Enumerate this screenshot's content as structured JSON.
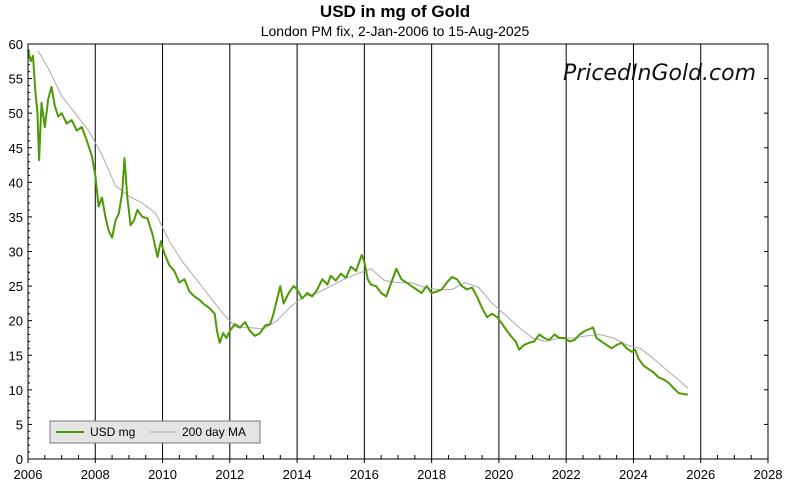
{
  "chart_data": {
    "type": "line",
    "title": "USD in mg of Gold",
    "subtitle": "London PM fix, 2-Jan-2006 to 15-Aug-2025",
    "watermark": "PricedInGold.com",
    "xlabel": "",
    "ylabel": "",
    "xlim": [
      2006,
      2028
    ],
    "ylim": [
      0,
      60
    ],
    "x_ticks": [
      "2006",
      "2008",
      "2010",
      "2012",
      "2014",
      "2016",
      "2018",
      "2020",
      "2022",
      "2024",
      "2026",
      "2028"
    ],
    "y_ticks": [
      "0",
      "5",
      "10",
      "15",
      "20",
      "25",
      "30",
      "35",
      "40",
      "45",
      "50",
      "55",
      "60"
    ],
    "grid": "vertical lines at each 2 years",
    "legend_position": "bottom-left",
    "series": [
      {
        "name": "USD mg",
        "color": "#4e9a06",
        "points": [
          [
            2006.0,
            59.2
          ],
          [
            2006.08,
            57.5
          ],
          [
            2006.15,
            58.3
          ],
          [
            2006.22,
            53.0
          ],
          [
            2006.28,
            50.2
          ],
          [
            2006.33,
            43.2
          ],
          [
            2006.4,
            51.5
          ],
          [
            2006.5,
            48.0
          ],
          [
            2006.6,
            52.0
          ],
          [
            2006.7,
            53.8
          ],
          [
            2006.8,
            51.0
          ],
          [
            2006.9,
            49.5
          ],
          [
            2007.0,
            50.0
          ],
          [
            2007.15,
            48.5
          ],
          [
            2007.3,
            49.0
          ],
          [
            2007.45,
            47.5
          ],
          [
            2007.6,
            48.0
          ],
          [
            2007.75,
            46.0
          ],
          [
            2007.9,
            43.8
          ],
          [
            2008.0,
            41.0
          ],
          [
            2008.1,
            36.5
          ],
          [
            2008.2,
            37.8
          ],
          [
            2008.3,
            35.0
          ],
          [
            2008.4,
            33.0
          ],
          [
            2008.5,
            32.0
          ],
          [
            2008.6,
            34.5
          ],
          [
            2008.7,
            35.5
          ],
          [
            2008.8,
            38.5
          ],
          [
            2008.87,
            43.5
          ],
          [
            2008.95,
            38.0
          ],
          [
            2009.05,
            33.8
          ],
          [
            2009.15,
            34.5
          ],
          [
            2009.25,
            36.0
          ],
          [
            2009.4,
            35.0
          ],
          [
            2009.55,
            34.8
          ],
          [
            2009.7,
            32.5
          ],
          [
            2009.85,
            29.2
          ],
          [
            2009.95,
            31.5
          ],
          [
            2010.05,
            29.8
          ],
          [
            2010.2,
            28.0
          ],
          [
            2010.35,
            27.2
          ],
          [
            2010.5,
            25.5
          ],
          [
            2010.65,
            26.0
          ],
          [
            2010.8,
            24.2
          ],
          [
            2010.95,
            23.5
          ],
          [
            2011.1,
            23.0
          ],
          [
            2011.25,
            22.3
          ],
          [
            2011.4,
            21.8
          ],
          [
            2011.55,
            21.0
          ],
          [
            2011.62,
            18.5
          ],
          [
            2011.7,
            16.8
          ],
          [
            2011.8,
            18.2
          ],
          [
            2011.9,
            17.5
          ],
          [
            2012.0,
            18.5
          ],
          [
            2012.15,
            19.5
          ],
          [
            2012.3,
            19.0
          ],
          [
            2012.45,
            19.8
          ],
          [
            2012.6,
            18.5
          ],
          [
            2012.75,
            17.8
          ],
          [
            2012.9,
            18.2
          ],
          [
            2013.05,
            19.3
          ],
          [
            2013.2,
            19.5
          ],
          [
            2013.3,
            21.0
          ],
          [
            2013.4,
            23.0
          ],
          [
            2013.5,
            25.0
          ],
          [
            2013.6,
            22.5
          ],
          [
            2013.75,
            24.0
          ],
          [
            2013.9,
            25.0
          ],
          [
            2014.0,
            24.5
          ],
          [
            2014.15,
            23.2
          ],
          [
            2014.3,
            24.0
          ],
          [
            2014.45,
            23.5
          ],
          [
            2014.6,
            24.5
          ],
          [
            2014.75,
            26.0
          ],
          [
            2014.9,
            25.2
          ],
          [
            2015.0,
            26.5
          ],
          [
            2015.15,
            25.8
          ],
          [
            2015.3,
            26.8
          ],
          [
            2015.45,
            26.2
          ],
          [
            2015.6,
            27.8
          ],
          [
            2015.75,
            27.2
          ],
          [
            2015.85,
            28.5
          ],
          [
            2015.92,
            29.5
          ],
          [
            2016.0,
            28.5
          ],
          [
            2016.1,
            26.0
          ],
          [
            2016.2,
            25.2
          ],
          [
            2016.35,
            25.0
          ],
          [
            2016.5,
            24.0
          ],
          [
            2016.65,
            23.5
          ],
          [
            2016.8,
            25.5
          ],
          [
            2016.95,
            27.5
          ],
          [
            2017.1,
            26.0
          ],
          [
            2017.25,
            25.5
          ],
          [
            2017.4,
            25.0
          ],
          [
            2017.55,
            24.5
          ],
          [
            2017.7,
            24.0
          ],
          [
            2017.85,
            25.0
          ],
          [
            2018.0,
            24.0
          ],
          [
            2018.15,
            24.2
          ],
          [
            2018.3,
            24.5
          ],
          [
            2018.45,
            25.5
          ],
          [
            2018.6,
            26.3
          ],
          [
            2018.75,
            26.0
          ],
          [
            2018.9,
            25.0
          ],
          [
            2019.05,
            24.5
          ],
          [
            2019.2,
            24.8
          ],
          [
            2019.35,
            23.5
          ],
          [
            2019.5,
            21.8
          ],
          [
            2019.65,
            20.5
          ],
          [
            2019.8,
            21.0
          ],
          [
            2019.95,
            20.5
          ],
          [
            2020.1,
            19.5
          ],
          [
            2020.2,
            18.8
          ],
          [
            2020.35,
            17.8
          ],
          [
            2020.5,
            17.0
          ],
          [
            2020.6,
            15.8
          ],
          [
            2020.75,
            16.5
          ],
          [
            2020.9,
            16.8
          ],
          [
            2021.05,
            17.0
          ],
          [
            2021.2,
            18.0
          ],
          [
            2021.35,
            17.5
          ],
          [
            2021.5,
            17.2
          ],
          [
            2021.65,
            18.0
          ],
          [
            2021.8,
            17.5
          ],
          [
            2021.95,
            17.5
          ],
          [
            2022.1,
            17.0
          ],
          [
            2022.25,
            17.2
          ],
          [
            2022.4,
            18.0
          ],
          [
            2022.55,
            18.5
          ],
          [
            2022.7,
            18.8
          ],
          [
            2022.8,
            19.0
          ],
          [
            2022.9,
            17.5
          ],
          [
            2023.05,
            17.0
          ],
          [
            2023.2,
            16.5
          ],
          [
            2023.35,
            16.0
          ],
          [
            2023.5,
            16.5
          ],
          [
            2023.65,
            16.8
          ],
          [
            2023.8,
            16.0
          ],
          [
            2023.95,
            15.5
          ],
          [
            2024.05,
            15.8
          ],
          [
            2024.15,
            14.5
          ],
          [
            2024.3,
            13.5
          ],
          [
            2024.45,
            13.0
          ],
          [
            2024.6,
            12.5
          ],
          [
            2024.75,
            11.8
          ],
          [
            2024.9,
            11.5
          ],
          [
            2025.05,
            11.0
          ],
          [
            2025.2,
            10.2
          ],
          [
            2025.35,
            9.5
          ],
          [
            2025.5,
            9.4
          ],
          [
            2025.62,
            9.3
          ]
        ]
      },
      {
        "name": "200 day MA",
        "color": "#aaaaaa",
        "points": [
          [
            2006.3,
            59.0
          ],
          [
            2006.6,
            56.5
          ],
          [
            2007.0,
            52.5
          ],
          [
            2007.4,
            50.0
          ],
          [
            2007.8,
            47.5
          ],
          [
            2008.2,
            44.0
          ],
          [
            2008.6,
            39.5
          ],
          [
            2009.0,
            38.0
          ],
          [
            2009.4,
            37.0
          ],
          [
            2009.8,
            35.5
          ],
          [
            2010.2,
            31.5
          ],
          [
            2010.6,
            28.5
          ],
          [
            2011.0,
            26.0
          ],
          [
            2011.4,
            23.5
          ],
          [
            2011.8,
            21.0
          ],
          [
            2012.2,
            19.0
          ],
          [
            2012.6,
            19.0
          ],
          [
            2013.0,
            18.8
          ],
          [
            2013.4,
            20.0
          ],
          [
            2013.8,
            22.0
          ],
          [
            2014.2,
            23.5
          ],
          [
            2014.6,
            24.0
          ],
          [
            2015.0,
            25.0
          ],
          [
            2015.4,
            26.0
          ],
          [
            2015.8,
            26.8
          ],
          [
            2016.2,
            27.5
          ],
          [
            2016.6,
            25.8
          ],
          [
            2017.0,
            25.5
          ],
          [
            2017.4,
            25.5
          ],
          [
            2017.8,
            24.8
          ],
          [
            2018.2,
            24.5
          ],
          [
            2018.6,
            24.5
          ],
          [
            2019.0,
            25.5
          ],
          [
            2019.4,
            24.8
          ],
          [
            2019.8,
            22.5
          ],
          [
            2020.2,
            20.8
          ],
          [
            2020.6,
            19.0
          ],
          [
            2021.0,
            17.5
          ],
          [
            2021.4,
            17.0
          ],
          [
            2021.8,
            17.5
          ],
          [
            2022.2,
            17.5
          ],
          [
            2022.6,
            17.8
          ],
          [
            2023.0,
            18.0
          ],
          [
            2023.4,
            17.5
          ],
          [
            2023.8,
            16.5
          ],
          [
            2024.2,
            16.0
          ],
          [
            2024.6,
            14.5
          ],
          [
            2025.0,
            12.8
          ],
          [
            2025.4,
            11.2
          ],
          [
            2025.62,
            10.2
          ]
        ]
      }
    ]
  }
}
